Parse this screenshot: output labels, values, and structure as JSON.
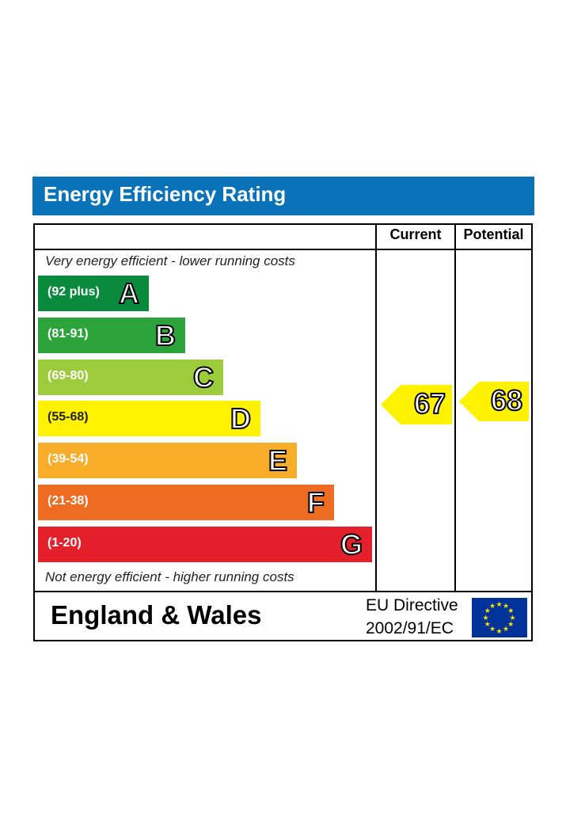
{
  "header": {
    "title": "Energy Efficiency Rating"
  },
  "columns": {
    "current": "Current",
    "potential": "Potential"
  },
  "notes": {
    "top": "Very energy efficient - lower running costs",
    "bottom": "Not energy efficient - higher running costs"
  },
  "chart_data": {
    "type": "bar",
    "title": "Energy Efficiency Rating",
    "categories": [
      "A",
      "B",
      "C",
      "D",
      "E",
      "F",
      "G"
    ],
    "bands": [
      {
        "letter": "A",
        "range": "(92 plus)",
        "color": "#0a8a3c"
      },
      {
        "letter": "B",
        "range": "(81-91)",
        "color": "#2ca43b"
      },
      {
        "letter": "C",
        "range": "(69-80)",
        "color": "#9ccb3b"
      },
      {
        "letter": "D",
        "range": "(55-68)",
        "color": "#fef200"
      },
      {
        "letter": "E",
        "range": "(39-54)",
        "color": "#f7ac2a"
      },
      {
        "letter": "F",
        "range": "(21-38)",
        "color": "#ee6b22"
      },
      {
        "letter": "G",
        "range": "(1-20)",
        "color": "#e3202b"
      }
    ],
    "current": {
      "value": "67",
      "band": "D",
      "color": "#fef200"
    },
    "potential": {
      "value": "68",
      "band": "D",
      "color": "#fef200"
    }
  },
  "footer": {
    "region": "England & Wales",
    "directive_line1": "EU Directive",
    "directive_line2": "2002/91/EC",
    "flag_icon": "eu-flag-icon"
  }
}
